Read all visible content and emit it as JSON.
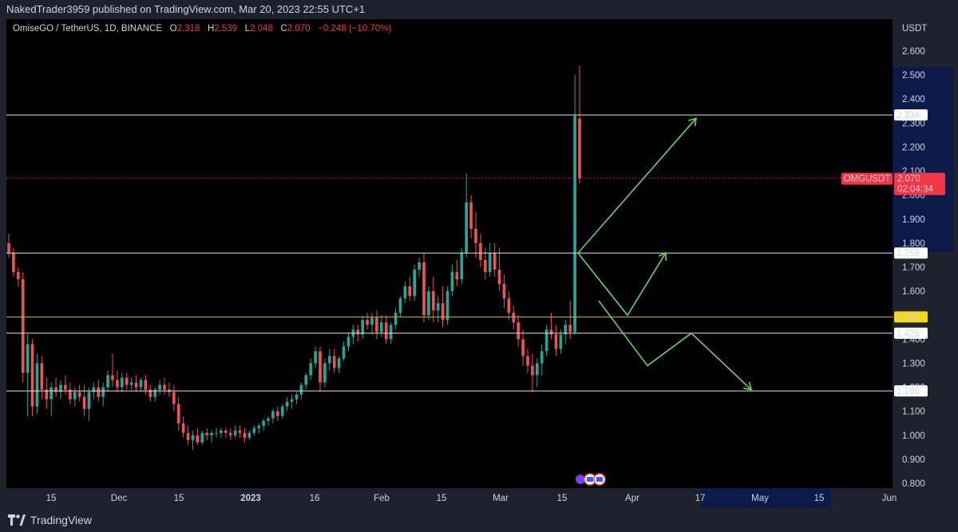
{
  "header": {
    "published_line": "NakedTrader3959 published on TradingView.com, Mar 20, 2023 22:55 UTC+1"
  },
  "legend": {
    "symbol": "OmiseGO / TetherUS, 1D, BINANCE",
    "o_label": "O",
    "o_value": "2.318",
    "h_label": "H",
    "h_value": "2.539",
    "l_label": "L",
    "l_value": "2.048",
    "c_label": "C",
    "c_value": "2.070",
    "change": "−0.248 (−10.70%)"
  },
  "footer": {
    "brand": "TradingView"
  },
  "colors": {
    "up": "#26a69a",
    "down": "#ef5350",
    "level_white": "#e0e3eb",
    "level_yellow": "#d4b82f",
    "arrow": "#6fcf64",
    "price_tag": "#f23645",
    "axis_bg": "#1e222d",
    "highlight_bg": "#0c1a4a"
  },
  "chart_data": {
    "type": "candlestick",
    "title": "OmiseGO / TetherUS, 1D, BINANCE",
    "currency_label": "USDT",
    "y_ticks": [
      "2.600",
      "2.500",
      "2.400",
      "2.300",
      "2.200",
      "2.100",
      "2.000",
      "1.900",
      "1.800",
      "1.700",
      "1.600",
      "1.500",
      "1.400",
      "1.300",
      "1.200",
      "1.100",
      "1.000",
      "0.900",
      "0.800"
    ],
    "x_ticks": [
      "15",
      "Dec",
      "15",
      "2023",
      "16",
      "Feb",
      "15",
      "Mar",
      "15",
      "Apr",
      "17",
      "May",
      "15",
      "Jun"
    ],
    "ylim": [
      0.8,
      2.6
    ],
    "horizontal_levels": [
      {
        "value": 2.334,
        "label": "2.334",
        "style": "white"
      },
      {
        "value": 1.759,
        "label": "1.759",
        "style": "white"
      },
      {
        "value": 1.493,
        "label": "1.493",
        "style": "yellow"
      },
      {
        "value": 1.425,
        "label": "1.425",
        "style": "white"
      },
      {
        "value": 1.185,
        "label": "1.185",
        "style": "white"
      }
    ],
    "current_price": {
      "symbol": "OMGUSDT",
      "value": "2.070",
      "countdown": "02:04:34"
    },
    "candles": [
      [
        1.8,
        1.84,
        1.74,
        1.76
      ],
      [
        1.76,
        1.78,
        1.66,
        1.68
      ],
      [
        1.68,
        1.7,
        1.62,
        1.65
      ],
      [
        1.65,
        1.68,
        1.22,
        1.26
      ],
      [
        1.26,
        1.42,
        1.08,
        1.38
      ],
      [
        1.38,
        1.4,
        1.08,
        1.12
      ],
      [
        1.12,
        1.34,
        1.09,
        1.3
      ],
      [
        1.3,
        1.33,
        1.15,
        1.19
      ],
      [
        1.19,
        1.24,
        1.11,
        1.15
      ],
      [
        1.15,
        1.22,
        1.08,
        1.2
      ],
      [
        1.2,
        1.24,
        1.16,
        1.18
      ],
      [
        1.18,
        1.23,
        1.15,
        1.21
      ],
      [
        1.21,
        1.25,
        1.17,
        1.19
      ],
      [
        1.19,
        1.22,
        1.13,
        1.15
      ],
      [
        1.15,
        1.2,
        1.12,
        1.18
      ],
      [
        1.18,
        1.21,
        1.14,
        1.16
      ],
      [
        1.16,
        1.21,
        1.08,
        1.11
      ],
      [
        1.11,
        1.2,
        1.06,
        1.18
      ],
      [
        1.18,
        1.22,
        1.15,
        1.2
      ],
      [
        1.2,
        1.23,
        1.14,
        1.16
      ],
      [
        1.16,
        1.22,
        1.12,
        1.2
      ],
      [
        1.2,
        1.27,
        1.18,
        1.25
      ],
      [
        1.25,
        1.34,
        1.2,
        1.23
      ],
      [
        1.23,
        1.27,
        1.18,
        1.2
      ],
      [
        1.2,
        1.26,
        1.18,
        1.24
      ],
      [
        1.24,
        1.26,
        1.19,
        1.21
      ],
      [
        1.21,
        1.24,
        1.19,
        1.22
      ],
      [
        1.22,
        1.25,
        1.18,
        1.2
      ],
      [
        1.2,
        1.24,
        1.18,
        1.23
      ],
      [
        1.23,
        1.25,
        1.17,
        1.19
      ],
      [
        1.19,
        1.21,
        1.14,
        1.16
      ],
      [
        1.16,
        1.2,
        1.14,
        1.19
      ],
      [
        1.19,
        1.23,
        1.17,
        1.21
      ],
      [
        1.21,
        1.24,
        1.17,
        1.19
      ],
      [
        1.19,
        1.22,
        1.16,
        1.18
      ],
      [
        1.18,
        1.21,
        1.1,
        1.13
      ],
      [
        1.13,
        1.16,
        1.02,
        1.05
      ],
      [
        1.05,
        1.08,
        0.99,
        1.01
      ],
      [
        1.01,
        1.04,
        0.96,
        0.98
      ],
      [
        0.98,
        1.02,
        0.94,
        1.0
      ],
      [
        1.0,
        1.03,
        0.96,
        0.97
      ],
      [
        0.97,
        1.02,
        0.96,
        1.01
      ],
      [
        1.01,
        1.03,
        0.98,
        1.0
      ],
      [
        1.0,
        1.02,
        0.97,
        1.01
      ],
      [
        1.01,
        1.03,
        0.99,
        1.01
      ],
      [
        1.01,
        1.03,
        0.99,
        1.02
      ],
      [
        1.02,
        1.03,
        0.99,
        1.01
      ],
      [
        1.01,
        1.03,
        0.98,
        1.0
      ],
      [
        1.0,
        1.04,
        0.99,
        1.02
      ],
      [
        1.02,
        1.04,
        0.99,
        1.01
      ],
      [
        1.01,
        1.03,
        0.97,
        0.99
      ],
      [
        0.99,
        1.02,
        0.98,
        1.01
      ],
      [
        1.01,
        1.04,
        1.0,
        1.03
      ],
      [
        1.03,
        1.05,
        1.01,
        1.04
      ],
      [
        1.04,
        1.07,
        1.02,
        1.06
      ],
      [
        1.06,
        1.08,
        1.04,
        1.07
      ],
      [
        1.07,
        1.11,
        1.05,
        1.1
      ],
      [
        1.1,
        1.12,
        1.06,
        1.08
      ],
      [
        1.08,
        1.13,
        1.07,
        1.12
      ],
      [
        1.12,
        1.16,
        1.1,
        1.14
      ],
      [
        1.14,
        1.17,
        1.11,
        1.15
      ],
      [
        1.15,
        1.18,
        1.13,
        1.17
      ],
      [
        1.17,
        1.22,
        1.15,
        1.21
      ],
      [
        1.21,
        1.26,
        1.19,
        1.25
      ],
      [
        1.25,
        1.32,
        1.23,
        1.3
      ],
      [
        1.3,
        1.37,
        1.28,
        1.35
      ],
      [
        1.35,
        1.37,
        1.18,
        1.22
      ],
      [
        1.22,
        1.32,
        1.2,
        1.3
      ],
      [
        1.3,
        1.36,
        1.27,
        1.33
      ],
      [
        1.33,
        1.36,
        1.26,
        1.28
      ],
      [
        1.28,
        1.33,
        1.26,
        1.32
      ],
      [
        1.32,
        1.39,
        1.31,
        1.37
      ],
      [
        1.37,
        1.43,
        1.35,
        1.41
      ],
      [
        1.41,
        1.46,
        1.38,
        1.44
      ],
      [
        1.44,
        1.46,
        1.39,
        1.42
      ],
      [
        1.42,
        1.5,
        1.4,
        1.48
      ],
      [
        1.48,
        1.51,
        1.44,
        1.46
      ],
      [
        1.46,
        1.51,
        1.42,
        1.49
      ],
      [
        1.49,
        1.52,
        1.4,
        1.43
      ],
      [
        1.43,
        1.5,
        1.41,
        1.47
      ],
      [
        1.47,
        1.5,
        1.38,
        1.4
      ],
      [
        1.4,
        1.47,
        1.38,
        1.46
      ],
      [
        1.46,
        1.53,
        1.44,
        1.51
      ],
      [
        1.51,
        1.58,
        1.49,
        1.57
      ],
      [
        1.57,
        1.64,
        1.55,
        1.62
      ],
      [
        1.62,
        1.66,
        1.56,
        1.58
      ],
      [
        1.58,
        1.71,
        1.56,
        1.69
      ],
      [
        1.69,
        1.74,
        1.66,
        1.72
      ],
      [
        1.72,
        1.76,
        1.47,
        1.5
      ],
      [
        1.5,
        1.62,
        1.48,
        1.6
      ],
      [
        1.6,
        1.66,
        1.47,
        1.52
      ],
      [
        1.52,
        1.58,
        1.47,
        1.55
      ],
      [
        1.55,
        1.62,
        1.45,
        1.48
      ],
      [
        1.48,
        1.62,
        1.46,
        1.6
      ],
      [
        1.6,
        1.71,
        1.58,
        1.68
      ],
      [
        1.68,
        1.73,
        1.62,
        1.65
      ],
      [
        1.65,
        1.78,
        1.63,
        1.76
      ],
      [
        1.76,
        2.09,
        1.74,
        1.97
      ],
      [
        1.97,
        2.0,
        1.82,
        1.86
      ],
      [
        1.86,
        1.93,
        1.74,
        1.8
      ],
      [
        1.8,
        1.84,
        1.7,
        1.73
      ],
      [
        1.73,
        1.78,
        1.65,
        1.68
      ],
      [
        1.68,
        1.8,
        1.66,
        1.76
      ],
      [
        1.76,
        1.8,
        1.66,
        1.69
      ],
      [
        1.69,
        1.78,
        1.6,
        1.63
      ],
      [
        1.63,
        1.67,
        1.53,
        1.57
      ],
      [
        1.57,
        1.6,
        1.48,
        1.51
      ],
      [
        1.51,
        1.54,
        1.44,
        1.47
      ],
      [
        1.47,
        1.5,
        1.37,
        1.4
      ],
      [
        1.4,
        1.44,
        1.29,
        1.33
      ],
      [
        1.33,
        1.36,
        1.26,
        1.29
      ],
      [
        1.29,
        1.34,
        1.18,
        1.25
      ],
      [
        1.25,
        1.32,
        1.2,
        1.3
      ],
      [
        1.3,
        1.38,
        1.25,
        1.35
      ],
      [
        1.35,
        1.46,
        1.33,
        1.44
      ],
      [
        1.44,
        1.51,
        1.4,
        1.42
      ],
      [
        1.42,
        1.46,
        1.33,
        1.36
      ],
      [
        1.36,
        1.44,
        1.34,
        1.42
      ],
      [
        1.42,
        1.48,
        1.38,
        1.46
      ],
      [
        1.46,
        1.56,
        1.4,
        1.43
      ],
      [
        1.43,
        2.5,
        1.42,
        2.33
      ],
      [
        2.318,
        2.539,
        2.048,
        2.07
      ]
    ]
  }
}
